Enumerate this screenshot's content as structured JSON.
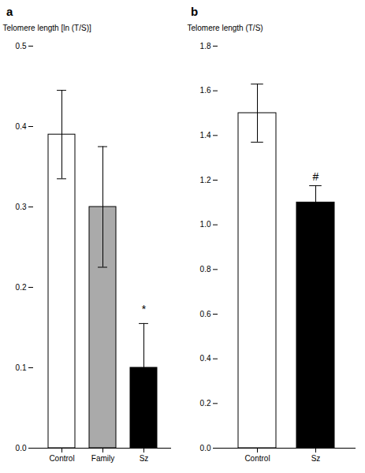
{
  "chart_data": [
    {
      "type": "bar",
      "title": "a",
      "categories": [
        "Control",
        "Family",
        "Sz"
      ],
      "values": [
        0.39,
        0.3,
        0.1
      ],
      "errors": [
        0.055,
        0.075,
        0.055
      ],
      "colors": [
        "white",
        "#aaaaaa",
        "black"
      ],
      "ylabel": "Telomere length [ln (T/S)]",
      "ylim": [
        0,
        0.5
      ],
      "yticks": [
        {
          "value": 0,
          "label": "0.0"
        },
        0.1,
        0.2,
        0.3,
        0.4,
        0.5
      ],
      "annotations": [
        {
          "text": "*",
          "x": "Sz",
          "y": 0.168
        }
      ]
    },
    {
      "type": "bar",
      "title": "b",
      "categories": [
        "Control",
        "Sz"
      ],
      "values": [
        1.5,
        1.1
      ],
      "errors": [
        0.13,
        0.075
      ],
      "colors": [
        "white",
        "black"
      ],
      "ylabel": "Telomere length (T/S)",
      "ylim": [
        0,
        1.8
      ],
      "yticks": [
        {
          "value": 0,
          "label": "0.0"
        },
        0.2,
        0.4,
        0.6,
        0.8,
        {
          "value": 1.0,
          "label": "1.0"
        },
        1.2,
        1.4,
        1.6,
        1.8
      ],
      "annotations": [
        {
          "text": "#",
          "x": "Sz",
          "y": 1.2
        }
      ]
    }
  ]
}
